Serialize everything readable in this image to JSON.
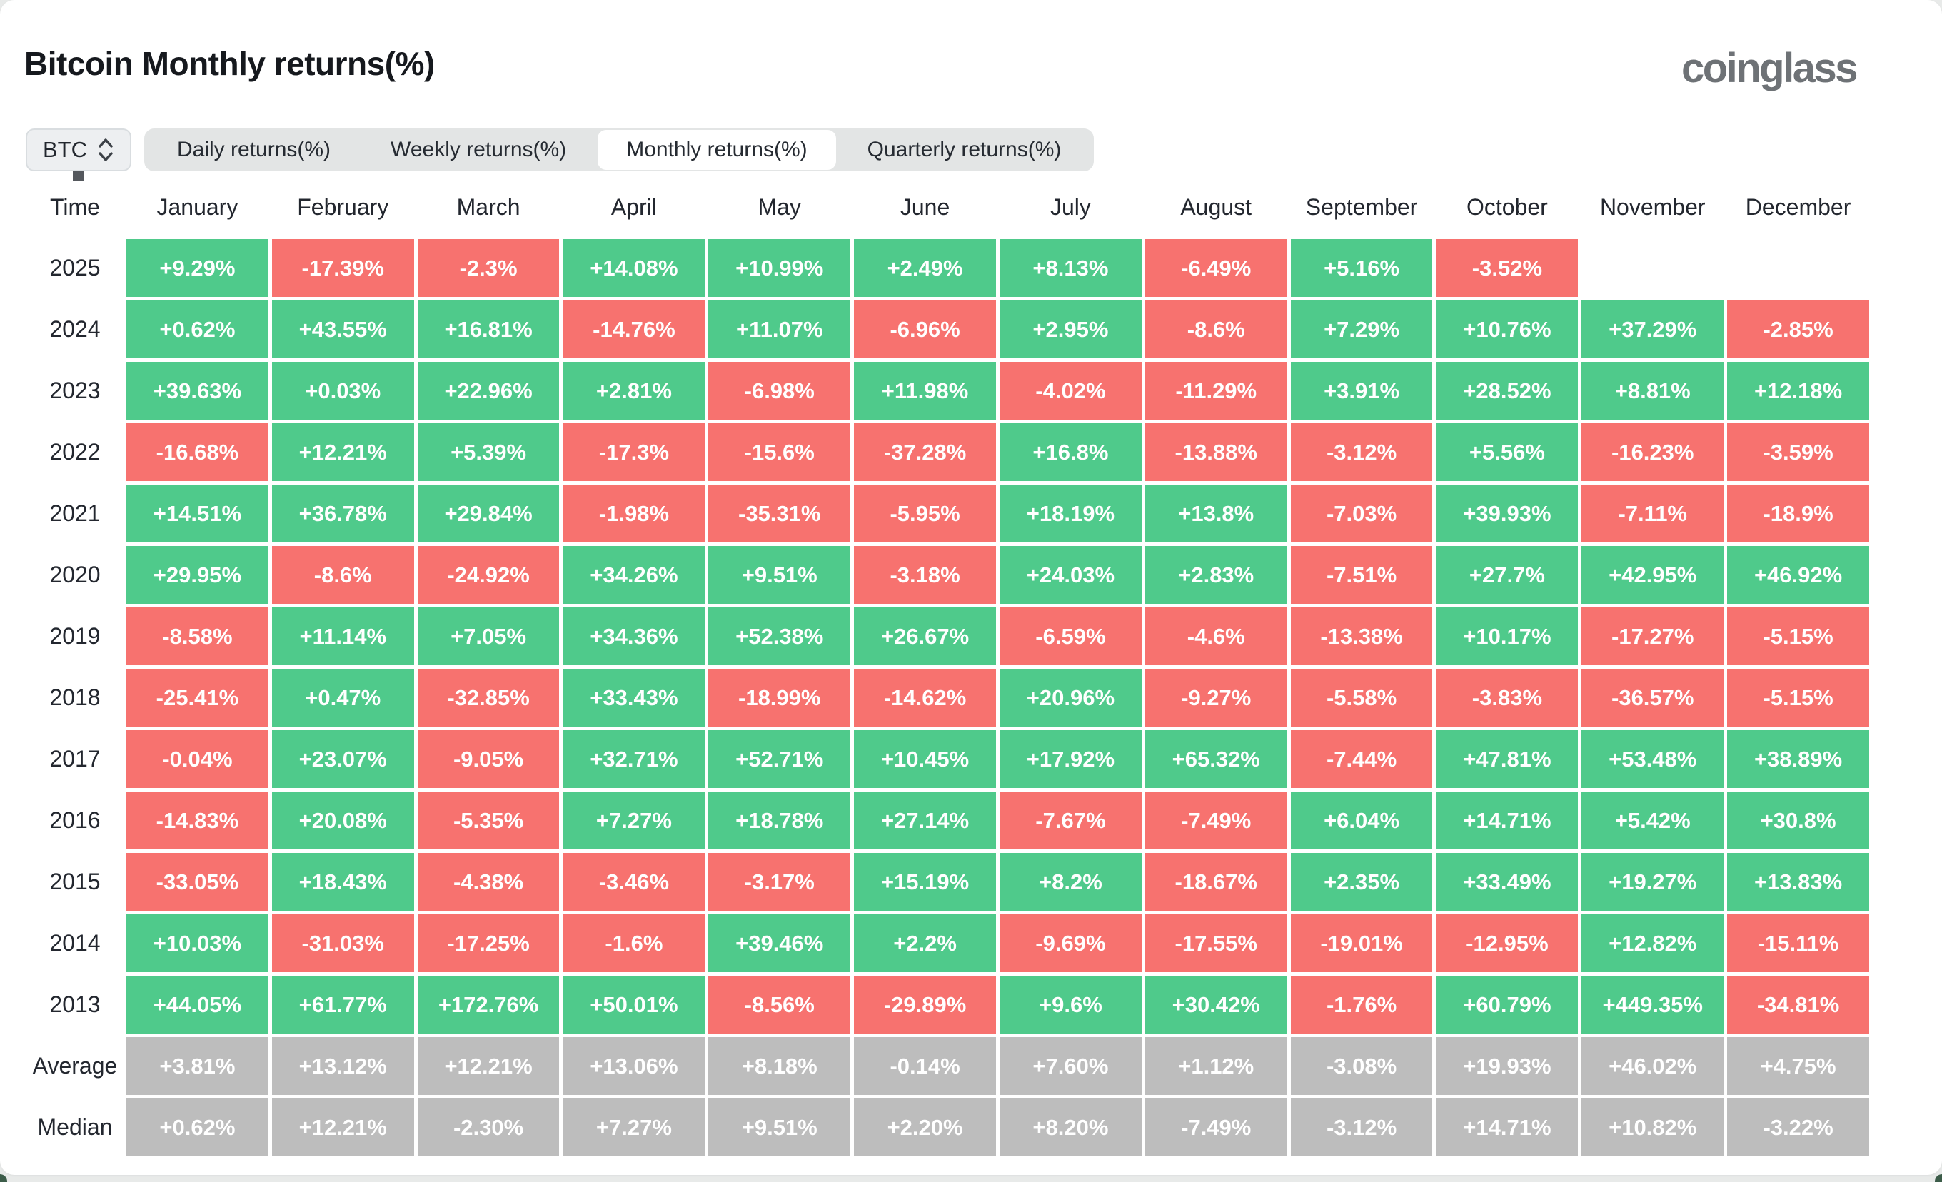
{
  "page": {
    "title": "Bitcoin Monthly returns(%)",
    "brand": "coinglass"
  },
  "controls": {
    "symbol": "BTC",
    "tabs": [
      {
        "label": "Daily returns(%)",
        "active": false
      },
      {
        "label": "Weekly returns(%)",
        "active": false
      },
      {
        "label": "Monthly returns(%)",
        "active": true
      },
      {
        "label": "Quarterly returns(%)",
        "active": false
      }
    ]
  },
  "colors": {
    "positive": "#4fca8b",
    "negative": "#f7726f",
    "summary": "#bdbdbd",
    "page_bg": "#e8eae9",
    "card_bg": "#ffffff"
  },
  "chart_data": {
    "type": "heatmap",
    "title": "Bitcoin Monthly returns(%)",
    "unit": "percent",
    "legend": "green = positive monthly return, red = negative, gray = summary rows, blank = no data",
    "columns": [
      "Time",
      "January",
      "February",
      "March",
      "April",
      "May",
      "June",
      "July",
      "August",
      "September",
      "October",
      "November",
      "December"
    ],
    "rows": [
      {
        "label": "2025",
        "kind": "year",
        "values": [
          "+9.29%",
          "-17.39%",
          "-2.3%",
          "+14.08%",
          "+10.99%",
          "+2.49%",
          "+8.13%",
          "-6.49%",
          "+5.16%",
          "-3.52%",
          "",
          ""
        ]
      },
      {
        "label": "2024",
        "kind": "year",
        "values": [
          "+0.62%",
          "+43.55%",
          "+16.81%",
          "-14.76%",
          "+11.07%",
          "-6.96%",
          "+2.95%",
          "-8.6%",
          "+7.29%",
          "+10.76%",
          "+37.29%",
          "-2.85%"
        ]
      },
      {
        "label": "2023",
        "kind": "year",
        "values": [
          "+39.63%",
          "+0.03%",
          "+22.96%",
          "+2.81%",
          "-6.98%",
          "+11.98%",
          "-4.02%",
          "-11.29%",
          "+3.91%",
          "+28.52%",
          "+8.81%",
          "+12.18%"
        ]
      },
      {
        "label": "2022",
        "kind": "year",
        "values": [
          "-16.68%",
          "+12.21%",
          "+5.39%",
          "-17.3%",
          "-15.6%",
          "-37.28%",
          "+16.8%",
          "-13.88%",
          "-3.12%",
          "+5.56%",
          "-16.23%",
          "-3.59%"
        ]
      },
      {
        "label": "2021",
        "kind": "year",
        "values": [
          "+14.51%",
          "+36.78%",
          "+29.84%",
          "-1.98%",
          "-35.31%",
          "-5.95%",
          "+18.19%",
          "+13.8%",
          "-7.03%",
          "+39.93%",
          "-7.11%",
          "-18.9%"
        ]
      },
      {
        "label": "2020",
        "kind": "year",
        "values": [
          "+29.95%",
          "-8.6%",
          "-24.92%",
          "+34.26%",
          "+9.51%",
          "-3.18%",
          "+24.03%",
          "+2.83%",
          "-7.51%",
          "+27.7%",
          "+42.95%",
          "+46.92%"
        ]
      },
      {
        "label": "2019",
        "kind": "year",
        "values": [
          "-8.58%",
          "+11.14%",
          "+7.05%",
          "+34.36%",
          "+52.38%",
          "+26.67%",
          "-6.59%",
          "-4.6%",
          "-13.38%",
          "+10.17%",
          "-17.27%",
          "-5.15%"
        ]
      },
      {
        "label": "2018",
        "kind": "year",
        "values": [
          "-25.41%",
          "+0.47%",
          "-32.85%",
          "+33.43%",
          "-18.99%",
          "-14.62%",
          "+20.96%",
          "-9.27%",
          "-5.58%",
          "-3.83%",
          "-36.57%",
          "-5.15%"
        ]
      },
      {
        "label": "2017",
        "kind": "year",
        "values": [
          "-0.04%",
          "+23.07%",
          "-9.05%",
          "+32.71%",
          "+52.71%",
          "+10.45%",
          "+17.92%",
          "+65.32%",
          "-7.44%",
          "+47.81%",
          "+53.48%",
          "+38.89%"
        ]
      },
      {
        "label": "2016",
        "kind": "year",
        "values": [
          "-14.83%",
          "+20.08%",
          "-5.35%",
          "+7.27%",
          "+18.78%",
          "+27.14%",
          "-7.67%",
          "-7.49%",
          "+6.04%",
          "+14.71%",
          "+5.42%",
          "+30.8%"
        ]
      },
      {
        "label": "2015",
        "kind": "year",
        "values": [
          "-33.05%",
          "+18.43%",
          "-4.38%",
          "-3.46%",
          "-3.17%",
          "+15.19%",
          "+8.2%",
          "-18.67%",
          "+2.35%",
          "+33.49%",
          "+19.27%",
          "+13.83%"
        ]
      },
      {
        "label": "2014",
        "kind": "year",
        "values": [
          "+10.03%",
          "-31.03%",
          "-17.25%",
          "-1.6%",
          "+39.46%",
          "+2.2%",
          "-9.69%",
          "-17.55%",
          "-19.01%",
          "-12.95%",
          "+12.82%",
          "-15.11%"
        ]
      },
      {
        "label": "2013",
        "kind": "year",
        "values": [
          "+44.05%",
          "+61.77%",
          "+172.76%",
          "+50.01%",
          "-8.56%",
          "-29.89%",
          "+9.6%",
          "+30.42%",
          "-1.76%",
          "+60.79%",
          "+449.35%",
          "-34.81%"
        ]
      },
      {
        "label": "Average",
        "kind": "summary",
        "values": [
          "+3.81%",
          "+13.12%",
          "+12.21%",
          "+13.06%",
          "+8.18%",
          "-0.14%",
          "+7.60%",
          "+1.12%",
          "-3.08%",
          "+19.93%",
          "+46.02%",
          "+4.75%"
        ]
      },
      {
        "label": "Median",
        "kind": "summary",
        "values": [
          "+0.62%",
          "+12.21%",
          "-2.30%",
          "+7.27%",
          "+9.51%",
          "+2.20%",
          "+8.20%",
          "-7.49%",
          "-3.12%",
          "+14.71%",
          "+10.82%",
          "-3.22%"
        ]
      }
    ]
  }
}
